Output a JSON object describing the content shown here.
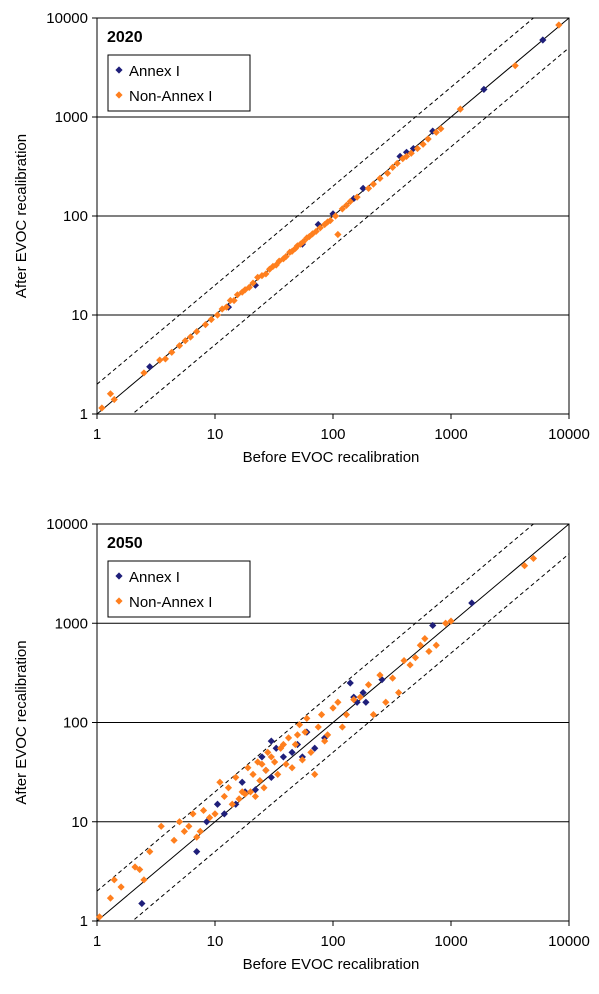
{
  "colors": {
    "annex": "#1f1f7a",
    "nonannex": "#ff7f1e",
    "axis": "#000000"
  },
  "chart_data": [
    {
      "type": "scatter",
      "title": "2020",
      "xlabel": "Before EVOC recalibration",
      "ylabel": "After EVOC recalibration",
      "xscale": "log",
      "yscale": "log",
      "xlim": [
        1,
        10000
      ],
      "ylim": [
        1,
        10000
      ],
      "x_ticks": [
        "1",
        "10",
        "100",
        "1000",
        "10000"
      ],
      "y_ticks": [
        "1",
        "10",
        "100",
        "1000",
        "10000"
      ],
      "grid": "horizontal",
      "legend": "top-left",
      "reference_lines": [
        {
          "factor": 1,
          "style": "solid"
        },
        {
          "factor": 2,
          "style": "dashed"
        },
        {
          "factor": 0.5,
          "style": "dashed"
        }
      ],
      "series": [
        {
          "name": "Annex I",
          "color": "#1f1f7a",
          "marker": "diamond",
          "x": [
            2.8,
            13,
            22,
            55,
            75,
            100,
            150,
            180,
            370,
            420,
            480,
            700,
            1900,
            6000
          ],
          "y": [
            3.0,
            12,
            20,
            52,
            82,
            105,
            150,
            190,
            400,
            440,
            480,
            720,
            1900,
            6000
          ]
        },
        {
          "name": "Non-Annex I",
          "color": "#ff7f1e",
          "marker": "diamond",
          "x": [
            1.1,
            1.3,
            1.4,
            2.5,
            3.4,
            3.8,
            4.3,
            5.0,
            5.6,
            6.2,
            7.0,
            8.3,
            9.3,
            10.5,
            11.5,
            12.5,
            13.5,
            14.5,
            15.5,
            17.0,
            18.0,
            19.5,
            21.0,
            23.0,
            25.0,
            27.0,
            29.0,
            31.0,
            33.0,
            35.0,
            38.0,
            40.0,
            43.0,
            45.0,
            48.0,
            50.0,
            53.0,
            56.0,
            60.0,
            63.0,
            67.0,
            72.0,
            78.0,
            85.0,
            90.0,
            95.0,
            105.0,
            110.0,
            120.0,
            130.0,
            140.0,
            160.0,
            200.0,
            220.0,
            250.0,
            290.0,
            320.0,
            350.0,
            390.0,
            420.0,
            460.0,
            520.0,
            580.0,
            640.0,
            750.0,
            820.0,
            1200.0,
            3500.0,
            8200.0
          ],
          "y": [
            1.15,
            1.6,
            1.4,
            2.6,
            3.5,
            3.6,
            4.2,
            4.9,
            5.5,
            6.0,
            6.8,
            8.0,
            9.0,
            10.0,
            11.5,
            12.0,
            14.0,
            14.0,
            16.0,
            17.0,
            18.0,
            19.0,
            21.0,
            24.0,
            25.0,
            26.0,
            29.0,
            31.0,
            32.0,
            35.0,
            37.0,
            39.0,
            43.0,
            44.0,
            47.0,
            50.0,
            52.0,
            55.0,
            60.0,
            62.0,
            66.0,
            70.0,
            76.0,
            82.0,
            87.0,
            90.0,
            100.0,
            65.0,
            118.0,
            128.0,
            140.0,
            155.0,
            190.0,
            210.0,
            240.0,
            270.0,
            310.0,
            340.0,
            380.0,
            400.0,
            430.0,
            480.0,
            530.0,
            600.0,
            700.0,
            760.0,
            1200.0,
            3300.0,
            8500.0
          ]
        }
      ]
    },
    {
      "type": "scatter",
      "title": "2050",
      "xlabel": "Before EVOC recalibration",
      "ylabel": "After EVOC recalibration",
      "xscale": "log",
      "yscale": "log",
      "xlim": [
        1,
        10000
      ],
      "ylim": [
        1,
        10000
      ],
      "x_ticks": [
        "1",
        "10",
        "100",
        "1000",
        "10000"
      ],
      "y_ticks": [
        "1",
        "10",
        "100",
        "1000",
        "10000"
      ],
      "grid": "horizontal",
      "legend": "top-left",
      "reference_lines": [
        {
          "factor": 1,
          "style": "solid"
        },
        {
          "factor": 2,
          "style": "dashed"
        },
        {
          "factor": 0.5,
          "style": "dashed"
        }
      ],
      "series": [
        {
          "name": "Annex I",
          "color": "#1f1f7a",
          "marker": "diamond",
          "x": [
            2.4,
            7.0,
            8.5,
            10.5,
            12.0,
            15.0,
            17.0,
            18.0,
            22.0,
            25.0,
            27.0,
            30.0,
            30.0,
            33.0,
            38.0,
            45.0,
            50.0,
            55.0,
            60.0,
            70.0,
            85.0,
            140.0,
            150.0,
            160.0,
            180.0,
            190.0,
            260.0,
            700.0,
            1500.0
          ],
          "y": [
            1.5,
            5.0,
            10.0,
            15.0,
            12.0,
            15.0,
            25.0,
            20.0,
            21.0,
            45.0,
            33.0,
            28.0,
            65.0,
            55.0,
            45.0,
            50.0,
            60.0,
            45.0,
            80.0,
            55.0,
            70.0,
            250.0,
            180.0,
            160.0,
            200.0,
            160.0,
            270.0,
            950.0,
            1600.0
          ]
        },
        {
          "name": "Non-Annex I",
          "color": "#ff7f1e",
          "marker": "diamond",
          "x": [
            1.05,
            1.3,
            1.4,
            1.6,
            2.1,
            2.3,
            2.5,
            2.8,
            3.5,
            4.5,
            5.0,
            5.5,
            6.0,
            6.5,
            7.0,
            7.5,
            8.0,
            9.0,
            10.0,
            11.0,
            12.0,
            13.0,
            14.0,
            15.0,
            16.0,
            17.0,
            18.0,
            19.0,
            20.0,
            21.0,
            22.0,
            23.0,
            24.0,
            25.0,
            26.0,
            27.0,
            28.0,
            30.0,
            32.0,
            34.0,
            36.0,
            38.0,
            40.0,
            42.0,
            45.0,
            48.0,
            50.0,
            52.0,
            55.0,
            58.0,
            60.0,
            65.0,
            70.0,
            75.0,
            80.0,
            85.0,
            90.0,
            100.0,
            110.0,
            120.0,
            130.0,
            150.0,
            170.0,
            200.0,
            220.0,
            250.0,
            280.0,
            320.0,
            360.0,
            400.0,
            450.0,
            500.0,
            550.0,
            600.0,
            650.0,
            750.0,
            900.0,
            1000.0,
            4200.0,
            5000.0
          ],
          "y": [
            1.1,
            1.7,
            2.6,
            2.2,
            3.5,
            3.3,
            2.6,
            5.0,
            9.0,
            6.5,
            10.0,
            8.0,
            9.0,
            12.0,
            7.0,
            8.0,
            13.0,
            11.0,
            12.0,
            25.0,
            18.0,
            22.0,
            15.0,
            28.0,
            17.0,
            20.0,
            19.0,
            35.0,
            20.0,
            30.0,
            18.0,
            40.0,
            26.0,
            38.0,
            22.0,
            33.0,
            50.0,
            45.0,
            40.0,
            30.0,
            55.0,
            60.0,
            38.0,
            70.0,
            35.0,
            60.0,
            75.0,
            95.0,
            42.0,
            80.0,
            110.0,
            50.0,
            30.0,
            90.0,
            120.0,
            65.0,
            75.0,
            140.0,
            160.0,
            90.0,
            120.0,
            170.0,
            180.0,
            240.0,
            120.0,
            300.0,
            160.0,
            280.0,
            200.0,
            420.0,
            380.0,
            450.0,
            600.0,
            700.0,
            520.0,
            600.0,
            1000.0,
            1050.0,
            3800.0,
            4500.0
          ]
        }
      ]
    }
  ]
}
